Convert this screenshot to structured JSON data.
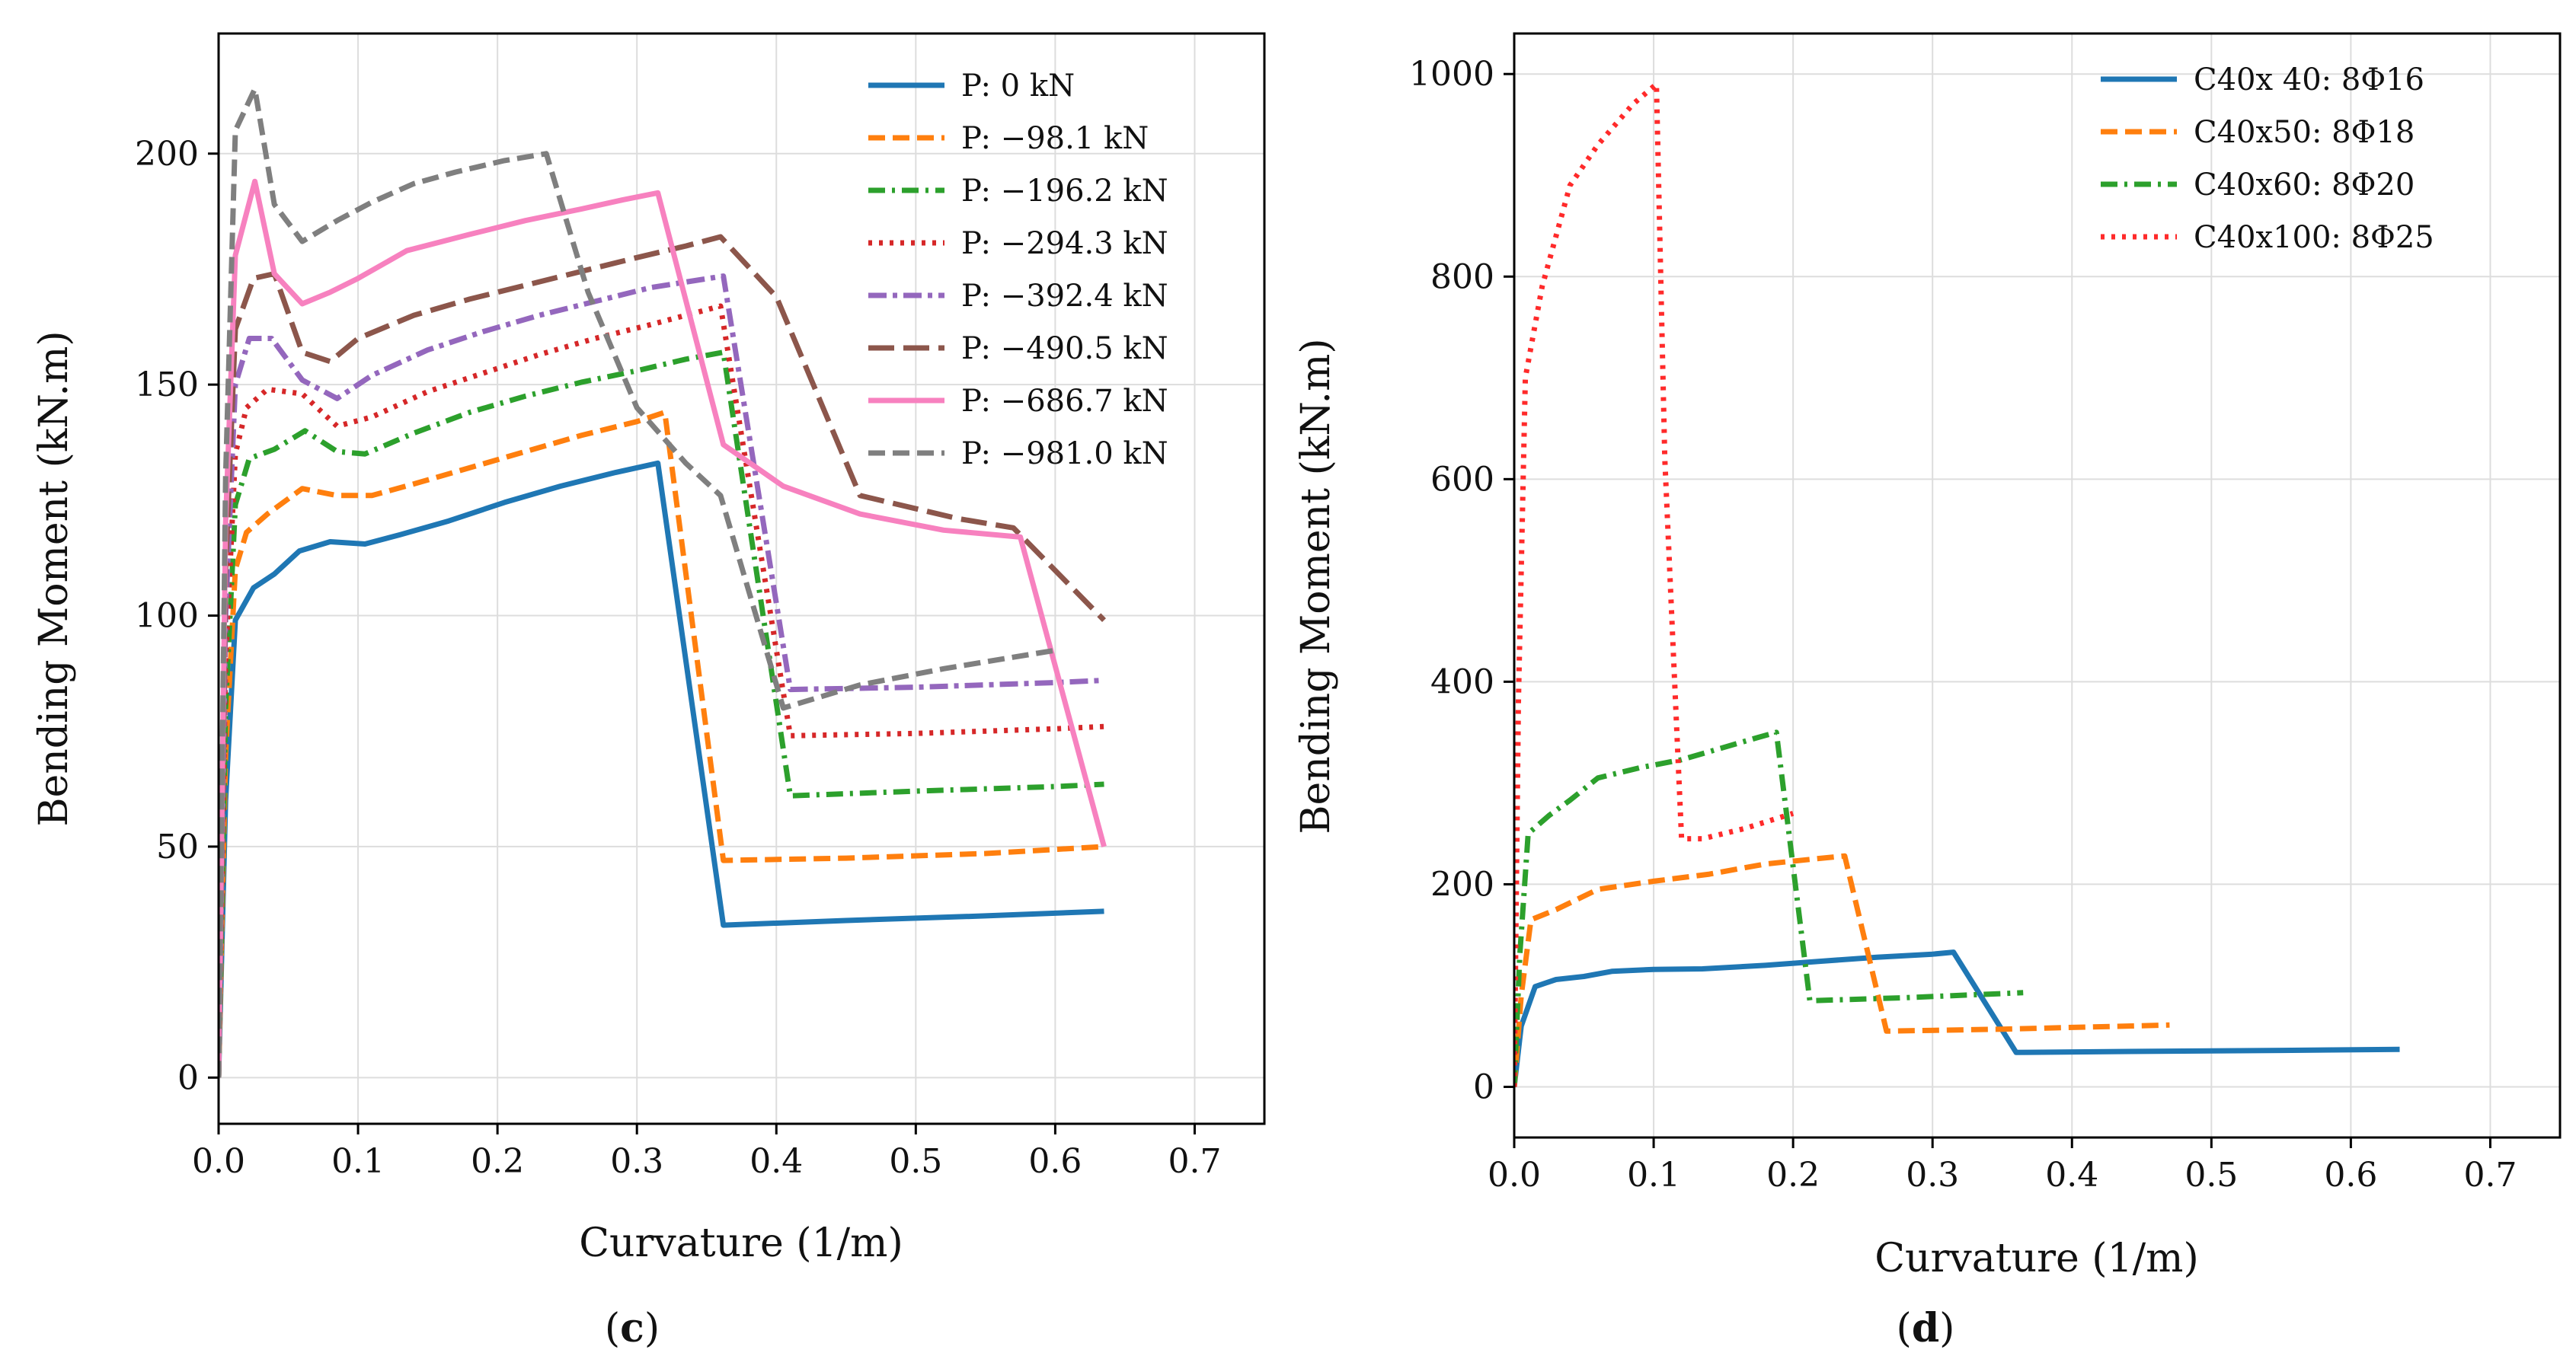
{
  "chart_data": [
    {
      "type": "line",
      "panel_label": {
        "open": "(",
        "letter": "c",
        "close": ")"
      },
      "xlabel": "Curvature (1/m)",
      "ylabel": "Bending Moment (kN.m)",
      "xlim": [
        0,
        0.75
      ],
      "ylim": [
        -10,
        226
      ],
      "xticks": [
        0.0,
        0.1,
        0.2,
        0.3,
        0.4,
        0.5,
        0.6,
        0.7
      ],
      "xtick_labels": [
        "0.0",
        "0.1",
        "0.2",
        "0.3",
        "0.4",
        "0.5",
        "0.6",
        "0.7"
      ],
      "yticks": [
        0,
        50,
        100,
        150,
        200
      ],
      "ytick_labels": [
        "0",
        "50",
        "100",
        "150",
        "200"
      ],
      "grid": true,
      "legend_position": "top-right",
      "series": [
        {
          "name": "P: 0 kN",
          "color": "#1f77b4",
          "dash": "solid",
          "x": [
            0,
            0.005,
            0.012,
            0.025,
            0.04,
            0.058,
            0.08,
            0.105,
            0.13,
            0.165,
            0.205,
            0.245,
            0.285,
            0.315,
            0.362,
            0.45,
            0.55,
            0.635
          ],
          "y": [
            0,
            60,
            99,
            106,
            109,
            114,
            116,
            115.5,
            117.5,
            120.5,
            124.5,
            128,
            131,
            133,
            33,
            34,
            35,
            36
          ]
        },
        {
          "name": "P: −98.1 kN",
          "color": "#ff7f0e",
          "dash": "dashed",
          "x": [
            0,
            0.005,
            0.012,
            0.02,
            0.035,
            0.06,
            0.085,
            0.11,
            0.14,
            0.18,
            0.22,
            0.26,
            0.3,
            0.32,
            0.362,
            0.45,
            0.55,
            0.635
          ],
          "y": [
            0,
            70,
            110,
            118,
            122,
            127.5,
            126,
            126,
            128.5,
            132,
            135.5,
            139,
            142,
            144,
            47,
            47.5,
            48.5,
            50
          ]
        },
        {
          "name": "P: −196.2 kN",
          "color": "#2ca02c",
          "dash": "dashdot",
          "x": [
            0,
            0.005,
            0.012,
            0.022,
            0.04,
            0.062,
            0.085,
            0.105,
            0.14,
            0.18,
            0.22,
            0.26,
            0.3,
            0.335,
            0.362,
            0.41,
            0.5,
            0.6,
            0.635
          ],
          "y": [
            0,
            80,
            124,
            134,
            136,
            140,
            135.5,
            135,
            139.5,
            144,
            147.5,
            150.5,
            153,
            155.5,
            157,
            61,
            62,
            63,
            63.5
          ]
        },
        {
          "name": "P: −294.3 kN",
          "color": "#d62728",
          "dash": "dotted",
          "x": [
            0,
            0.005,
            0.012,
            0.02,
            0.035,
            0.06,
            0.085,
            0.11,
            0.15,
            0.19,
            0.23,
            0.27,
            0.31,
            0.36,
            0.41,
            0.5,
            0.6,
            0.635
          ],
          "y": [
            0,
            90,
            135,
            145,
            149,
            148,
            141,
            143,
            148.5,
            152.5,
            156.5,
            160,
            163,
            167,
            74,
            74.5,
            75.5,
            76
          ]
        },
        {
          "name": "P: −392.4 kN",
          "color": "#9467bd",
          "dash": "dashdot2",
          "x": [
            0,
            0.005,
            0.012,
            0.022,
            0.038,
            0.06,
            0.085,
            0.11,
            0.15,
            0.19,
            0.23,
            0.27,
            0.31,
            0.362,
            0.41,
            0.5,
            0.6,
            0.635
          ],
          "y": [
            0,
            100,
            150,
            160,
            160,
            151,
            147,
            152,
            157.5,
            161.5,
            165,
            168,
            171,
            173.5,
            84,
            84.5,
            85.5,
            86
          ]
        },
        {
          "name": "P: −490.5 kN",
          "color": "#8c564b",
          "dash": "longdash",
          "x": [
            0,
            0.005,
            0.012,
            0.025,
            0.04,
            0.06,
            0.08,
            0.1,
            0.14,
            0.18,
            0.22,
            0.26,
            0.3,
            0.335,
            0.36,
            0.4,
            0.46,
            0.53,
            0.57,
            0.635
          ],
          "y": [
            0,
            110,
            162,
            173,
            174,
            157,
            155,
            160,
            165,
            168.5,
            171.5,
            174.5,
            177.5,
            180,
            182,
            169,
            126,
            121,
            119,
            99
          ]
        },
        {
          "name": "P: −686.7 kN",
          "color": "#f781bf",
          "dash": "solid",
          "x": [
            0,
            0.005,
            0.012,
            0.026,
            0.04,
            0.06,
            0.08,
            0.1,
            0.135,
            0.18,
            0.22,
            0.26,
            0.29,
            0.315,
            0.362,
            0.405,
            0.46,
            0.52,
            0.575,
            0.635
          ],
          "y": [
            0,
            120,
            178,
            194,
            174,
            167.5,
            170,
            173,
            179,
            182.5,
            185.5,
            188,
            190,
            191.5,
            137,
            128,
            122,
            118.5,
            117,
            50
          ]
        },
        {
          "name": "P: −981.0 kN",
          "color": "#7f7f7f",
          "dash": "dashed",
          "x": [
            0,
            0.005,
            0.012,
            0.026,
            0.04,
            0.06,
            0.085,
            0.11,
            0.14,
            0.17,
            0.205,
            0.235,
            0.265,
            0.3,
            0.335,
            0.36,
            0.405,
            0.46,
            0.52,
            0.6
          ],
          "y": [
            0,
            130,
            205,
            214,
            189,
            181,
            185.5,
            189.5,
            193.5,
            196,
            198.5,
            200,
            170,
            145,
            133,
            126,
            80,
            85,
            88.5,
            92.5
          ]
        }
      ]
    },
    {
      "type": "line",
      "panel_label": {
        "open": "(",
        "letter": "d",
        "close": ")"
      },
      "xlabel": "Curvature (1/m)",
      "ylabel": "Bending Moment (kN.m)",
      "xlim": [
        0,
        0.75
      ],
      "ylim": [
        -50,
        1040
      ],
      "xticks": [
        0.0,
        0.1,
        0.2,
        0.3,
        0.4,
        0.5,
        0.6,
        0.7
      ],
      "xtick_labels": [
        "0.0",
        "0.1",
        "0.2",
        "0.3",
        "0.4",
        "0.5",
        "0.6",
        "0.7"
      ],
      "yticks": [
        0,
        200,
        400,
        600,
        800,
        1000
      ],
      "ytick_labels": [
        "0",
        "200",
        "400",
        "600",
        "800",
        "1000"
      ],
      "grid": true,
      "legend_position": "top-right",
      "series": [
        {
          "name": "C40x 40:   8Φ16",
          "color": "#1f77b4",
          "dash": "solid",
          "x": [
            0,
            0.005,
            0.015,
            0.03,
            0.05,
            0.07,
            0.1,
            0.135,
            0.18,
            0.22,
            0.26,
            0.3,
            0.315,
            0.36,
            0.45,
            0.55,
            0.635
          ],
          "y": [
            0,
            60,
            99,
            106,
            109,
            114,
            116,
            116.5,
            120,
            124,
            128,
            131,
            133,
            34,
            35,
            36,
            37
          ]
        },
        {
          "name": "C40x50:   8Φ18",
          "color": "#ff7f0e",
          "dash": "dashed",
          "x": [
            0,
            0.005,
            0.012,
            0.03,
            0.06,
            0.1,
            0.14,
            0.18,
            0.215,
            0.237,
            0.267,
            0.35,
            0.47
          ],
          "y": [
            0,
            90,
            165,
            175,
            195,
            203,
            210,
            220,
            225,
            228,
            55,
            57,
            61
          ]
        },
        {
          "name": "C40x60:   8Φ20",
          "color": "#2ca02c",
          "dash": "dashdot",
          "x": [
            0,
            0.004,
            0.01,
            0.025,
            0.04,
            0.06,
            0.09,
            0.12,
            0.15,
            0.175,
            0.188,
            0.212,
            0.28,
            0.365
          ],
          "y": [
            0,
            130,
            250,
            268,
            283,
            305,
            315,
            323,
            335,
            345,
            350,
            85,
            88,
            93
          ]
        },
        {
          "name": "C40x100: 8Φ25",
          "color": "#ff2a2a",
          "dash": "dotted",
          "x": [
            0,
            0.003,
            0.008,
            0.02,
            0.04,
            0.06,
            0.085,
            0.102,
            0.108,
            0.12,
            0.135,
            0.165,
            0.2
          ],
          "y": [
            0,
            380,
            700,
            790,
            890,
            930,
            970,
            990,
            620,
            245,
            245,
            255,
            270
          ]
        }
      ]
    }
  ]
}
